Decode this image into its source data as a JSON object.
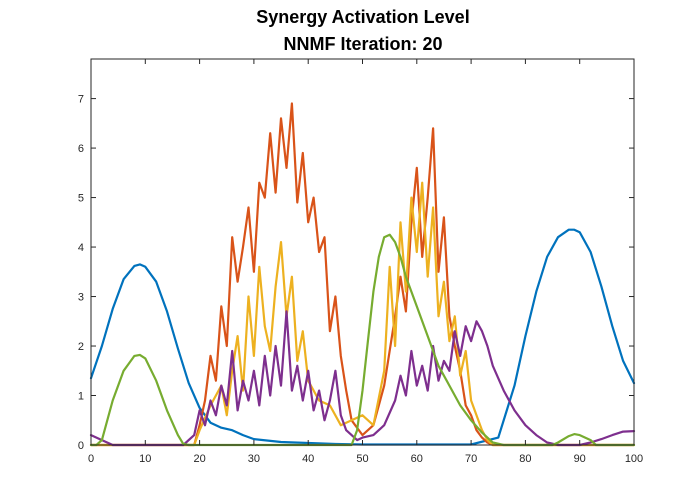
{
  "chart_data": {
    "type": "line",
    "title": "Synergy Activation Level",
    "subtitle": "NNMF Iteration: 20",
    "xlabel": "",
    "ylabel": "",
    "xlim": [
      0,
      100
    ],
    "ylim": [
      0,
      7.8
    ],
    "grid": false,
    "x_ticks": [
      0,
      10,
      20,
      30,
      40,
      50,
      60,
      70,
      80,
      90,
      100
    ],
    "y_ticks": [
      0,
      1,
      2,
      3,
      4,
      5,
      6,
      7
    ],
    "series": [
      {
        "color": "#0072BD",
        "x": [
          0,
          2,
          4,
          6,
          8,
          9,
          10,
          12,
          14,
          16,
          18,
          20,
          22,
          24,
          26,
          28,
          30,
          35,
          40,
          45,
          50,
          55,
          60,
          65,
          70,
          75,
          78,
          80,
          82,
          84,
          86,
          88,
          89,
          90,
          92,
          94,
          96,
          98,
          100
        ],
        "y": [
          1.35,
          2.0,
          2.75,
          3.35,
          3.62,
          3.65,
          3.6,
          3.3,
          2.7,
          1.95,
          1.25,
          0.75,
          0.45,
          0.35,
          0.3,
          0.2,
          0.12,
          0.06,
          0.04,
          0.02,
          0.01,
          0.01,
          0.01,
          0.01,
          0.01,
          0.15,
          1.2,
          2.2,
          3.1,
          3.8,
          4.2,
          4.35,
          4.35,
          4.3,
          3.9,
          3.2,
          2.4,
          1.7,
          1.25
        ]
      },
      {
        "color": "#D95319",
        "x": [
          0,
          19,
          20,
          21,
          22,
          23,
          24,
          25,
          26,
          27,
          28,
          29,
          30,
          31,
          32,
          33,
          34,
          35,
          36,
          37,
          38,
          39,
          40,
          41,
          42,
          43,
          44,
          45,
          46,
          47,
          48,
          50,
          52,
          54,
          56,
          57,
          58,
          59,
          60,
          61,
          62,
          63,
          64,
          65,
          66,
          67,
          68,
          69,
          70,
          71,
          72,
          73,
          74,
          100
        ],
        "y": [
          0,
          0,
          0.4,
          0.9,
          1.8,
          1.3,
          2.8,
          2.0,
          4.2,
          3.3,
          4.0,
          4.8,
          3.5,
          5.3,
          5.0,
          6.3,
          5.1,
          6.6,
          5.6,
          6.9,
          4.9,
          5.9,
          4.5,
          5.0,
          3.9,
          4.2,
          2.3,
          3.0,
          1.8,
          1.1,
          0.5,
          0.2,
          0.4,
          1.2,
          2.6,
          3.4,
          2.7,
          4.5,
          5.6,
          3.8,
          5.0,
          6.4,
          3.5,
          4.6,
          2.6,
          2.0,
          1.5,
          0.8,
          0.6,
          0.3,
          0.15,
          0.05,
          0,
          0
        ]
      },
      {
        "color": "#EDB120",
        "x": [
          0,
          19,
          20,
          22,
          24,
          25,
          26,
          27,
          28,
          29,
          30,
          31,
          32,
          33,
          34,
          35,
          36,
          37,
          38,
          39,
          40,
          42,
          44,
          46,
          48,
          50,
          52,
          54,
          55,
          56,
          57,
          58,
          59,
          60,
          61,
          62,
          63,
          64,
          65,
          66,
          67,
          68,
          69,
          70,
          71,
          72,
          73,
          74,
          100
        ],
        "y": [
          0,
          0,
          0.3,
          0.8,
          1.2,
          0.6,
          1.5,
          2.2,
          1.1,
          3.0,
          1.8,
          3.6,
          2.4,
          1.9,
          3.2,
          4.1,
          2.6,
          3.4,
          1.7,
          2.3,
          1.3,
          0.9,
          0.8,
          0.4,
          0.5,
          0.6,
          0.4,
          1.5,
          3.6,
          2.0,
          4.5,
          3.1,
          5.0,
          3.9,
          5.3,
          3.4,
          4.8,
          2.6,
          3.3,
          2.1,
          2.6,
          1.4,
          1.9,
          0.9,
          0.6,
          0.3,
          0.1,
          0,
          0
        ]
      },
      {
        "color": "#7E2F8E",
        "x": [
          0,
          2,
          4,
          10,
          17,
          19,
          20,
          21,
          22,
          23,
          24,
          25,
          26,
          27,
          28,
          29,
          30,
          31,
          32,
          33,
          34,
          35,
          36,
          37,
          38,
          39,
          40,
          41,
          42,
          43,
          44,
          45,
          46,
          47,
          48,
          49,
          50,
          52,
          54,
          56,
          57,
          58,
          59,
          60,
          61,
          62,
          63,
          64,
          65,
          66,
          67,
          68,
          69,
          70,
          71,
          72,
          73,
          74,
          76,
          78,
          80,
          82,
          84,
          86,
          88,
          90,
          92,
          94,
          96,
          98,
          100
        ],
        "y": [
          0.2,
          0.1,
          0.0,
          0.0,
          0.0,
          0.2,
          0.7,
          0.4,
          0.9,
          0.6,
          1.2,
          0.8,
          1.9,
          0.7,
          1.3,
          0.9,
          1.5,
          0.8,
          1.8,
          1.0,
          2.0,
          1.2,
          2.7,
          1.1,
          1.6,
          0.9,
          1.5,
          0.7,
          1.1,
          0.5,
          0.9,
          1.5,
          0.6,
          0.3,
          0.2,
          0.1,
          0.15,
          0.2,
          0.4,
          0.9,
          1.4,
          1.0,
          1.9,
          1.2,
          1.6,
          1.1,
          2.0,
          1.3,
          1.7,
          1.5,
          2.3,
          1.8,
          2.4,
          2.1,
          2.5,
          2.3,
          2.0,
          1.6,
          1.1,
          0.7,
          0.4,
          0.2,
          0.05,
          0.0,
          0.0,
          0.0,
          0.05,
          0.12,
          0.2,
          0.27,
          0.28
        ]
      },
      {
        "color": "#77AC30",
        "x": [
          0,
          1,
          2,
          4,
          6,
          8,
          9,
          10,
          12,
          14,
          16,
          17,
          18,
          48,
          49,
          50,
          51,
          52,
          53,
          54,
          55,
          56,
          57,
          58,
          60,
          62,
          64,
          66,
          68,
          70,
          72,
          74,
          76,
          85,
          86,
          88,
          89,
          90,
          92,
          93,
          100
        ],
        "y": [
          0,
          0,
          0.1,
          0.9,
          1.5,
          1.8,
          1.82,
          1.75,
          1.3,
          0.7,
          0.2,
          0.02,
          0,
          0,
          0.3,
          1.1,
          2.1,
          3.1,
          3.8,
          4.2,
          4.25,
          4.1,
          3.8,
          3.4,
          2.8,
          2.2,
          1.6,
          1.2,
          0.8,
          0.5,
          0.25,
          0.05,
          0,
          0,
          0.05,
          0.18,
          0.22,
          0.2,
          0.1,
          0.0,
          0
        ]
      }
    ]
  }
}
